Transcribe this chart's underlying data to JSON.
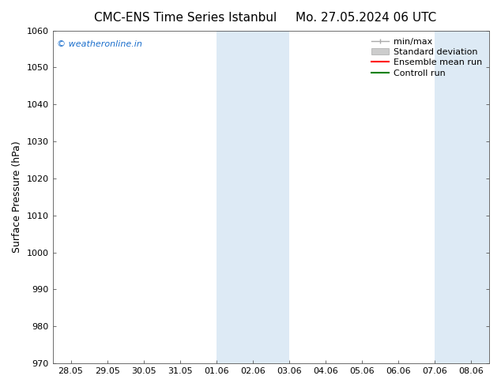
{
  "title_left": "CMC-ENS Time Series Istanbul",
  "title_right": "Mo. 27.05.2024 06 UTC",
  "ylabel": "Surface Pressure (hPa)",
  "ylim": [
    970,
    1060
  ],
  "yticks": [
    970,
    980,
    990,
    1000,
    1010,
    1020,
    1030,
    1040,
    1050,
    1060
  ],
  "xtick_labels": [
    "28.05",
    "29.05",
    "30.05",
    "31.05",
    "01.06",
    "02.06",
    "03.06",
    "04.06",
    "05.06",
    "06.06",
    "07.06",
    "08.06"
  ],
  "xtick_positions": [
    0,
    1,
    2,
    3,
    4,
    5,
    6,
    7,
    8,
    9,
    10,
    11
  ],
  "xlim": [
    -0.5,
    11.5
  ],
  "shaded_regions": [
    {
      "x_start": 4.0,
      "x_end": 5.0,
      "color": "#ddeaf5"
    },
    {
      "x_start": 5.0,
      "x_end": 6.0,
      "color": "#ddeaf5"
    },
    {
      "x_start": 10.0,
      "x_end": 11.0,
      "color": "#ddeaf5"
    },
    {
      "x_start": 11.0,
      "x_end": 11.5,
      "color": "#ddeaf5"
    }
  ],
  "watermark_text": "© weatheronline.in",
  "watermark_color": "#1a6ecc",
  "legend_items": [
    {
      "label": "min/max",
      "color": "#aaaaaa",
      "type": "errbar"
    },
    {
      "label": "Standard deviation",
      "color": "#cccccc",
      "type": "patch"
    },
    {
      "label": "Ensemble mean run",
      "color": "red",
      "type": "line"
    },
    {
      "label": "Controll run",
      "color": "green",
      "type": "line"
    }
  ],
  "bg_color": "#ffffff",
  "title_fontsize": 11,
  "axis_fontsize": 8,
  "label_fontsize": 9,
  "legend_fontsize": 8
}
